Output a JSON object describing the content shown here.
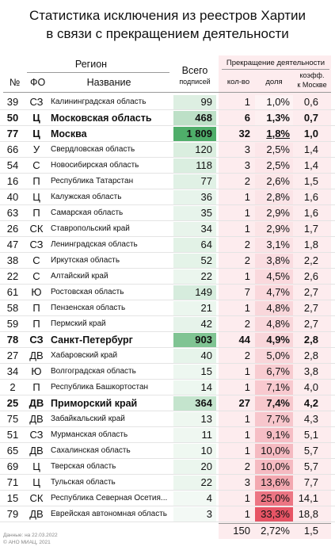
{
  "title_line1": "Статистика исключения из реестров Хартии",
  "title_line2": "в связи с прекращением деятельности",
  "header": {
    "region": "Регион",
    "no": "№",
    "fo": "ФО",
    "name": "Название",
    "total1": "Всего",
    "total2": "подписей",
    "termination": "Прекращение деятельности",
    "count": "кол-во",
    "share": "доля",
    "coef1": "коэфф.",
    "coef2": "к Москве"
  },
  "colors": {
    "total_bar": "#4fae6a",
    "share_bar": "#e64b5d",
    "band": "#fdecee"
  },
  "chart_data": {
    "type": "table",
    "title": "Статистика исключения из реестров Хартии в связи с прекращением деятельности",
    "columns": [
      "№",
      "ФО",
      "Название",
      "Всего подписей",
      "кол-во",
      "доля",
      "коэфф. к Москве"
    ],
    "rows": [
      {
        "no": "39",
        "fo": "СЗ",
        "name": "Калининградская область",
        "total": "99",
        "total_value": 99,
        "count": "1",
        "share": "1,0%",
        "share_value": 1.0,
        "coef": "0,6",
        "hl": false
      },
      {
        "no": "50",
        "fo": "Ц",
        "name": "Московская область",
        "total": "468",
        "total_value": 468,
        "count": "6",
        "share": "1,3%",
        "share_value": 1.3,
        "coef": "0,7",
        "hl": true
      },
      {
        "no": "77",
        "fo": "Ц",
        "name": "Москва",
        "total": "1 809",
        "total_value": 1809,
        "count": "32",
        "share": "1,8%",
        "share_value": 1.8,
        "coef": "1,0",
        "hl": true,
        "underline": true
      },
      {
        "no": "66",
        "fo": "У",
        "name": "Свердловская область",
        "total": "120",
        "total_value": 120,
        "count": "3",
        "share": "2,5%",
        "share_value": 2.5,
        "coef": "1,4",
        "hl": false
      },
      {
        "no": "54",
        "fo": "С",
        "name": "Новосибирская область",
        "total": "118",
        "total_value": 118,
        "count": "3",
        "share": "2,5%",
        "share_value": 2.5,
        "coef": "1,4",
        "hl": false
      },
      {
        "no": "16",
        "fo": "П",
        "name": "Республика Татарстан",
        "total": "77",
        "total_value": 77,
        "count": "2",
        "share": "2,6%",
        "share_value": 2.6,
        "coef": "1,5",
        "hl": false
      },
      {
        "no": "40",
        "fo": "Ц",
        "name": "Калужская область",
        "total": "36",
        "total_value": 36,
        "count": "1",
        "share": "2,8%",
        "share_value": 2.8,
        "coef": "1,6",
        "hl": false
      },
      {
        "no": "63",
        "fo": "П",
        "name": "Самарская область",
        "total": "35",
        "total_value": 35,
        "count": "1",
        "share": "2,9%",
        "share_value": 2.9,
        "coef": "1,6",
        "hl": false
      },
      {
        "no": "26",
        "fo": "СК",
        "name": "Ставропольский край",
        "total": "34",
        "total_value": 34,
        "count": "1",
        "share": "2,9%",
        "share_value": 2.9,
        "coef": "1,7",
        "hl": false
      },
      {
        "no": "47",
        "fo": "СЗ",
        "name": "Ленинградская область",
        "total": "64",
        "total_value": 64,
        "count": "2",
        "share": "3,1%",
        "share_value": 3.1,
        "coef": "1,8",
        "hl": false
      },
      {
        "no": "38",
        "fo": "С",
        "name": "Иркутская область",
        "total": "52",
        "total_value": 52,
        "count": "2",
        "share": "3,8%",
        "share_value": 3.8,
        "coef": "2,2",
        "hl": false
      },
      {
        "no": "22",
        "fo": "С",
        "name": "Алтайский край",
        "total": "22",
        "total_value": 22,
        "count": "1",
        "share": "4,5%",
        "share_value": 4.5,
        "coef": "2,6",
        "hl": false
      },
      {
        "no": "61",
        "fo": "Ю",
        "name": "Ростовская область",
        "total": "149",
        "total_value": 149,
        "count": "7",
        "share": "4,7%",
        "share_value": 4.7,
        "coef": "2,7",
        "hl": false
      },
      {
        "no": "58",
        "fo": "П",
        "name": "Пензенская область",
        "total": "21",
        "total_value": 21,
        "count": "1",
        "share": "4,8%",
        "share_value": 4.8,
        "coef": "2,7",
        "hl": false
      },
      {
        "no": "59",
        "fo": "П",
        "name": "Пермский край",
        "total": "42",
        "total_value": 42,
        "count": "2",
        "share": "4,8%",
        "share_value": 4.8,
        "coef": "2,7",
        "hl": false
      },
      {
        "no": "78",
        "fo": "СЗ",
        "name": "Санкт-Петербург",
        "total": "903",
        "total_value": 903,
        "count": "44",
        "share": "4,9%",
        "share_value": 4.9,
        "coef": "2,8",
        "hl": true
      },
      {
        "no": "27",
        "fo": "ДВ",
        "name": "Хабаровский край",
        "total": "40",
        "total_value": 40,
        "count": "2",
        "share": "5,0%",
        "share_value": 5.0,
        "coef": "2,8",
        "hl": false
      },
      {
        "no": "34",
        "fo": "Ю",
        "name": "Волгоградская область",
        "total": "15",
        "total_value": 15,
        "count": "1",
        "share": "6,7%",
        "share_value": 6.7,
        "coef": "3,8",
        "hl": false
      },
      {
        "no": "2",
        "fo": "П",
        "name": "Республика Башкортостан",
        "total": "14",
        "total_value": 14,
        "count": "1",
        "share": "7,1%",
        "share_value": 7.1,
        "coef": "4,0",
        "hl": false
      },
      {
        "no": "25",
        "fo": "ДВ",
        "name": "Приморский край",
        "total": "364",
        "total_value": 364,
        "count": "27",
        "share": "7,4%",
        "share_value": 7.4,
        "coef": "4,2",
        "hl": true
      },
      {
        "no": "75",
        "fo": "ДВ",
        "name": "Забайкальский край",
        "total": "13",
        "total_value": 13,
        "count": "1",
        "share": "7,7%",
        "share_value": 7.7,
        "coef": "4,3",
        "hl": false
      },
      {
        "no": "51",
        "fo": "СЗ",
        "name": "Мурманская область",
        "total": "11",
        "total_value": 11,
        "count": "1",
        "share": "9,1%",
        "share_value": 9.1,
        "coef": "5,1",
        "hl": false
      },
      {
        "no": "65",
        "fo": "ДВ",
        "name": "Сахалинская область",
        "total": "10",
        "total_value": 10,
        "count": "1",
        "share": "10,0%",
        "share_value": 10.0,
        "coef": "5,7",
        "hl": false
      },
      {
        "no": "69",
        "fo": "Ц",
        "name": "Тверская область",
        "total": "20",
        "total_value": 20,
        "count": "2",
        "share": "10,0%",
        "share_value": 10.0,
        "coef": "5,7",
        "hl": false
      },
      {
        "no": "71",
        "fo": "Ц",
        "name": "Тульская область",
        "total": "22",
        "total_value": 22,
        "count": "3",
        "share": "13,6%",
        "share_value": 13.6,
        "coef": "7,7",
        "hl": false
      },
      {
        "no": "15",
        "fo": "СК",
        "name": "Республика Северная Осетия...",
        "total": "4",
        "total_value": 4,
        "count": "1",
        "share": "25,0%",
        "share_value": 25.0,
        "coef": "14,1",
        "hl": false
      },
      {
        "no": "79",
        "fo": "ДВ",
        "name": "Еврейская автономная область",
        "total": "3",
        "total_value": 3,
        "count": "1",
        "share": "33,3%",
        "share_value": 33.3,
        "coef": "18,8",
        "hl": false
      }
    ],
    "totals": {
      "count": "150",
      "share": "2,72%",
      "coef": "1,5"
    }
  },
  "footer": {
    "line1": "Данные: на 22.03.2022",
    "line2": "© АНО МИАЦ, 2021"
  }
}
